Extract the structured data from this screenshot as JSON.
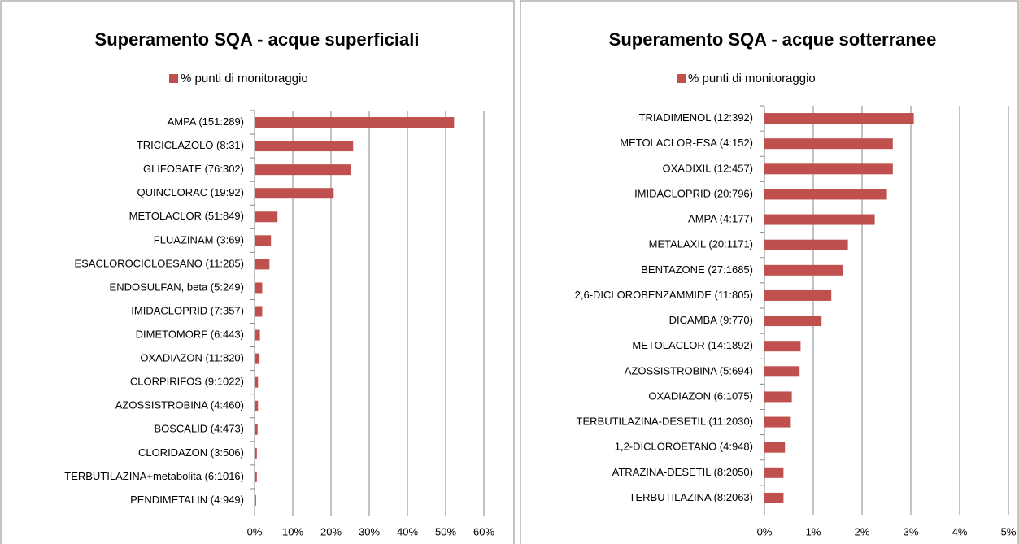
{
  "chart_data": [
    {
      "type": "bar",
      "orientation": "horizontal",
      "title": "Superamento SQA - acque superficiali",
      "legend": "top",
      "categories": [
        "AMPA (151:289)",
        "TRICICLAZOLO (8:31)",
        "GLIFOSATE (76:302)",
        "QUINCLORAC (19:92)",
        "METOLACLOR (51:849)",
        "FLUAZINAM (3:69)",
        "ESACLOROCICLOESANO (11:285)",
        "ENDOSULFAN, beta (5:249)",
        "IMIDACLOPRID (7:357)",
        "DIMETOMORF (6:443)",
        "OXADIAZON (11:820)",
        "CLORPIRIFOS (9:1022)",
        "AZOSSISTROBINA (4:460)",
        "BOSCALID (4:473)",
        "CLORIDAZON (3:506)",
        "TERBUTILAZINA+metabolita  (6:1016)",
        "PENDIMETALIN (4:949)"
      ],
      "series": [
        {
          "name": "% punti di monitoraggio",
          "color": "#c0504d",
          "values": [
            52.2,
            25.8,
            25.2,
            20.7,
            6.0,
            4.3,
            3.9,
            2.0,
            2.0,
            1.4,
            1.3,
            0.9,
            0.9,
            0.8,
            0.6,
            0.6,
            0.4
          ]
        }
      ],
      "xlim": [
        0,
        60
      ],
      "xticks": [
        {
          "value": 0,
          "label": "0%"
        },
        {
          "value": 10,
          "label": "10%"
        },
        {
          "value": 20,
          "label": "20%"
        },
        {
          "value": 30,
          "label": "30%"
        },
        {
          "value": 40,
          "label": "40%"
        },
        {
          "value": 50,
          "label": "50%"
        },
        {
          "value": 60,
          "label": "60%"
        }
      ],
      "grid": true
    },
    {
      "type": "bar",
      "orientation": "horizontal",
      "title": "Superamento SQA - acque sotterranee",
      "legend": "top",
      "categories": [
        "TRIADIMENOL (12:392)",
        "METOLACLOR-ESA (4:152)",
        "OXADIXIL (12:457)",
        "IMIDACLOPRID (20:796)",
        "AMPA (4:177)",
        "METALAXIL (20:1171)",
        "BENTAZONE  (27:1685)",
        "2,6-DICLOROBENZAMMIDE (11:805)",
        "DICAMBA (9:770)",
        "METOLACLOR (14:1892)",
        "AZOSSISTROBINA (5:694)",
        "OXADIAZON (6:1075)",
        "TERBUTILAZINA-DESETIL  (11:2030)",
        "1,2-DICLOROETANO (4:948)",
        "ATRAZINA-DESETIL (8:2050)",
        "TERBUTILAZINA  (8:2063)"
      ],
      "series": [
        {
          "name": "% punti di monitoraggio",
          "color": "#c0504d",
          "values": [
            3.06,
            2.63,
            2.63,
            2.51,
            2.26,
            1.71,
            1.6,
            1.37,
            1.17,
            0.74,
            0.72,
            0.56,
            0.54,
            0.42,
            0.39,
            0.39
          ]
        }
      ],
      "xlim": [
        0,
        5
      ],
      "xticks": [
        {
          "value": 0,
          "label": "0%"
        },
        {
          "value": 1,
          "label": "1%"
        },
        {
          "value": 2,
          "label": "2%"
        },
        {
          "value": 3,
          "label": "3%"
        },
        {
          "value": 4,
          "label": "4%"
        },
        {
          "value": 5,
          "label": "5%"
        }
      ],
      "grid": true
    }
  ]
}
